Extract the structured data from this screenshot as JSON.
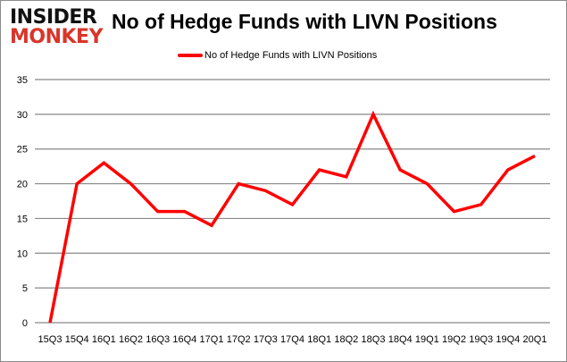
{
  "logo": {
    "line1": "INSIDER",
    "line2": "MONKEY"
  },
  "chart_data": {
    "type": "line",
    "title": "No of Hedge Funds with LIVN Positions",
    "categories": [
      "15Q3",
      "15Q4",
      "16Q1",
      "16Q2",
      "16Q3",
      "16Q4",
      "17Q1",
      "17Q2",
      "17Q3",
      "17Q4",
      "18Q1",
      "18Q2",
      "18Q3",
      "18Q4",
      "19Q1",
      "19Q2",
      "19Q3",
      "19Q4",
      "20Q1"
    ],
    "series": [
      {
        "name": "No of Hedge Funds with LIVN Positions",
        "values": [
          0,
          20,
          23,
          20,
          16,
          16,
          14,
          20,
          19,
          17,
          22,
          21,
          30,
          22,
          20,
          16,
          17,
          22,
          24
        ],
        "color": "#ff0000"
      }
    ],
    "ylim": [
      0,
      35
    ],
    "yticks": [
      0,
      5,
      10,
      15,
      20,
      25,
      30,
      35
    ],
    "grid": true,
    "legend": "top-center",
    "xlabel": "",
    "ylabel": ""
  }
}
